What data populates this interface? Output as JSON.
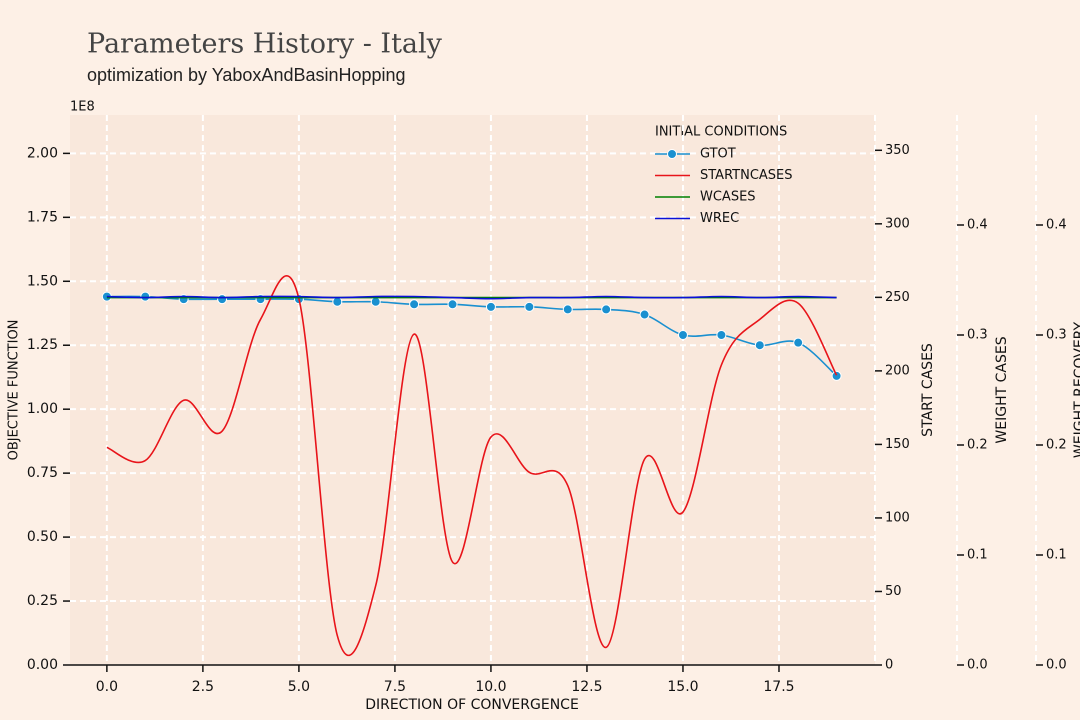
{
  "chart_data": {
    "type": "line",
    "title": "Parameters History - Italy",
    "subtitle": "optimization by YaboxAndBasinHopping",
    "x_label": "DIRECTION OF CONVERGENCE",
    "y_label": "OBJECTIVE FUNCTION",
    "y2_label": "START CASES",
    "y3_label": "WEIGHT CASES",
    "y4_label": "WEIGHT RECOVERY",
    "y_offset_label": "1E8",
    "legend_title": "INITIAL CONDITIONS",
    "legend": "upper right",
    "grid": true,
    "x": [
      0,
      1,
      2,
      3,
      4,
      5,
      6,
      7,
      8,
      9,
      10,
      11,
      12,
      13,
      14,
      15,
      16,
      17,
      18,
      19
    ],
    "xlim": [
      -0.96,
      20.0
    ],
    "xticks": [
      {
        "value": 0,
        "label": "0.0"
      },
      2.5,
      {
        "value": 5,
        "label": "5.0"
      },
      7.5,
      {
        "value": 10,
        "label": "10.0"
      },
      12.5,
      {
        "value": 15,
        "label": "15.0"
      },
      17.5
    ],
    "ylim": [
      0,
      2.15
    ],
    "yticks": [
      {
        "value": 0,
        "label": "0.00"
      },
      0.25,
      {
        "value": 0.5,
        "label": "0.50"
      },
      0.75,
      {
        "value": 1,
        "label": "1.00"
      },
      1.25,
      {
        "value": 1.5,
        "label": "1.50"
      },
      1.75,
      {
        "value": 2,
        "label": "2.00"
      }
    ],
    "y2lim": [
      0,
      374
    ],
    "y2ticks": [
      0,
      50,
      100,
      150,
      200,
      250,
      300,
      350
    ],
    "y3lim": [
      0,
      0.5
    ],
    "y3ticks": [
      {
        "value": 0,
        "label": "0.0"
      },
      0.1,
      0.2,
      0.3,
      0.4
    ],
    "y4lim": [
      0,
      0.5
    ],
    "y4ticks": [
      {
        "value": 0,
        "label": "0.0"
      },
      0.1,
      0.2,
      0.3,
      0.4
    ],
    "series": [
      {
        "name": "GTOT",
        "color": "#1a90d0",
        "axis": "y",
        "markers": true,
        "values": [
          1.44,
          1.44,
          1.43,
          1.43,
          1.43,
          1.43,
          1.42,
          1.42,
          1.41,
          1.41,
          1.4,
          1.4,
          1.39,
          1.39,
          1.37,
          1.29,
          1.29,
          1.25,
          1.26,
          1.13
        ]
      },
      {
        "name": "STARTNCASES",
        "color": "#e8141a",
        "axis": "y2",
        "markers": false,
        "values": [
          148,
          139,
          180,
          159,
          235,
          249,
          20,
          54,
          225,
          70,
          155,
          131,
          122,
          12,
          140,
          104,
          204,
          235,
          246,
          197
        ]
      },
      {
        "name": "WCASES",
        "color": "#008000",
        "axis": "y3",
        "markers": false,
        "values": [
          0.334,
          0.334,
          0.334,
          0.334,
          0.334,
          0.334,
          0.334,
          0.334,
          0.334,
          0.334,
          0.334,
          0.334,
          0.334,
          0.334,
          0.334,
          0.334,
          0.334,
          0.334,
          0.334,
          0.334
        ]
      },
      {
        "name": "WREC",
        "color": "#0a10d8",
        "axis": "y4",
        "markers": false,
        "values": [
          0.335,
          0.334,
          0.335,
          0.334,
          0.335,
          0.335,
          0.334,
          0.335,
          0.335,
          0.334,
          0.333,
          0.334,
          0.334,
          0.335,
          0.334,
          0.334,
          0.335,
          0.334,
          0.335,
          0.334
        ]
      }
    ]
  }
}
